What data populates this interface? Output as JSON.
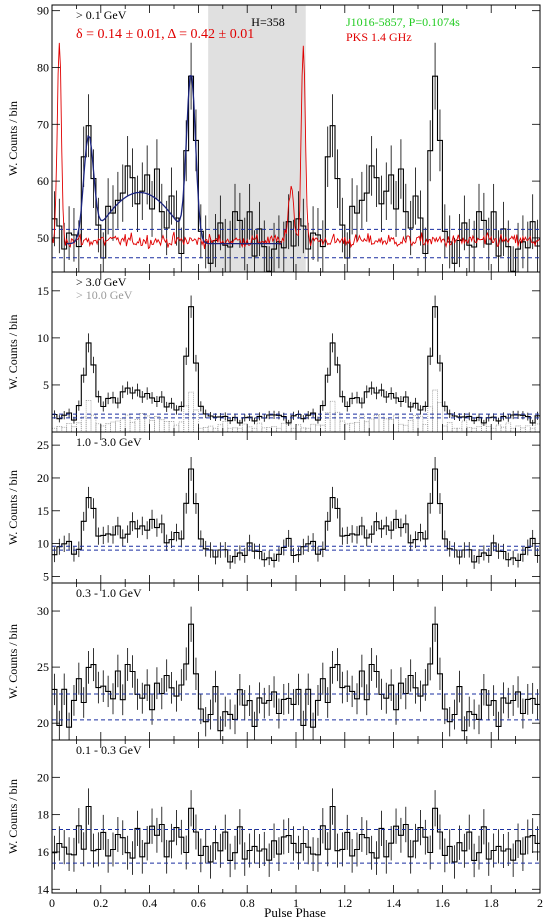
{
  "figure": {
    "xlabel": "Pulse Phase",
    "ylabel": "W. Counts / bin",
    "x_ticks": [
      "0",
      "0.2",
      "0.4",
      "0.6",
      "0.8",
      "1",
      "1.2",
      "1.4",
      "1.6",
      "1.8",
      "2"
    ]
  },
  "colors": {
    "histogram": "#000000",
    "radio": "#e00000",
    "fit": "#1a237e",
    "background_line": "#1a2fa0",
    "annotation_green": "#22cc22",
    "annotation_red": "#e00000",
    "highlight": "#e0e0e0",
    "gray_hist": "#9a9a9a"
  },
  "chart_data": [
    {
      "type": "histogram",
      "panel": "top",
      "energy_label": "> 0.1 GeV",
      "ylim": [
        44,
        91
      ],
      "y_ticks": [
        50,
        60,
        70,
        80,
        90
      ],
      "peaks": [
        {
          "phase": 0.15,
          "height": 68
        },
        {
          "phase": 0.57,
          "height": 79
        }
      ],
      "baseline": 49,
      "bridge": 58,
      "background_levels": [
        51.5,
        46.5
      ],
      "stats_text": "δ = 0.14 ± 0.01, Δ = 0.42 ± 0.01",
      "h_label": "H=358",
      "pulsar_label": "J1016-5857, P=0.1074s",
      "radio_label": "PKS 1.4 GHz",
      "highlight_phase": [
        0.64,
        1.04
      ],
      "radio_peaks": [
        {
          "phase": 0.03,
          "height": 85
        },
        {
          "phase": 1.03,
          "height": 85
        }
      ],
      "radio_baseline": 49.5
    },
    {
      "type": "histogram",
      "panel": "gt3",
      "energy_label": "> 3.0 GeV",
      "secondary_label": "> 10.0 GeV",
      "ylim": [
        0,
        17
      ],
      "y_ticks": [
        5,
        10,
        15
      ],
      "peaks": [
        {
          "phase": 0.15,
          "height": 9
        },
        {
          "phase": 0.57,
          "height": 13
        }
      ],
      "baseline": 1.5,
      "bridge": 4.2,
      "background_levels": [
        1.9,
        1.5
      ]
    },
    {
      "type": "histogram",
      "panel": "1to3",
      "energy_label": "1.0 - 3.0 GeV",
      "ylim": [
        4,
        27
      ],
      "y_ticks": [
        5,
        10,
        15,
        20,
        25
      ],
      "peaks": [
        {
          "phase": 0.15,
          "height": 16
        },
        {
          "phase": 0.57,
          "height": 22
        }
      ],
      "baseline": 9,
      "bridge": 13,
      "background_levels": [
        9.6,
        9.0
      ]
    },
    {
      "type": "histogram",
      "panel": "0.3to1",
      "energy_label": "0.3 - 1.0 GeV",
      "ylim": [
        18.5,
        32.5
      ],
      "y_ticks": [
        20,
        25,
        30
      ],
      "peaks": [
        {
          "phase": 0.15,
          "height": 25.5
        },
        {
          "phase": 0.57,
          "height": 28
        }
      ],
      "baseline": 21.5,
      "bridge": 23.5,
      "background_levels": [
        22.6,
        20.3
      ]
    },
    {
      "type": "histogram",
      "panel": "0.1to0.3",
      "energy_label": "0.1 - 0.3 GeV",
      "ylim": [
        13.8,
        22
      ],
      "y_ticks": [
        14,
        16,
        18,
        20
      ],
      "peaks": [
        {
          "phase": 0.15,
          "height": 17.4
        },
        {
          "phase": 0.57,
          "height": 18.2
        }
      ],
      "baseline": 16.3,
      "bridge": 16.9,
      "background_levels": [
        17.2,
        15.4
      ]
    }
  ]
}
